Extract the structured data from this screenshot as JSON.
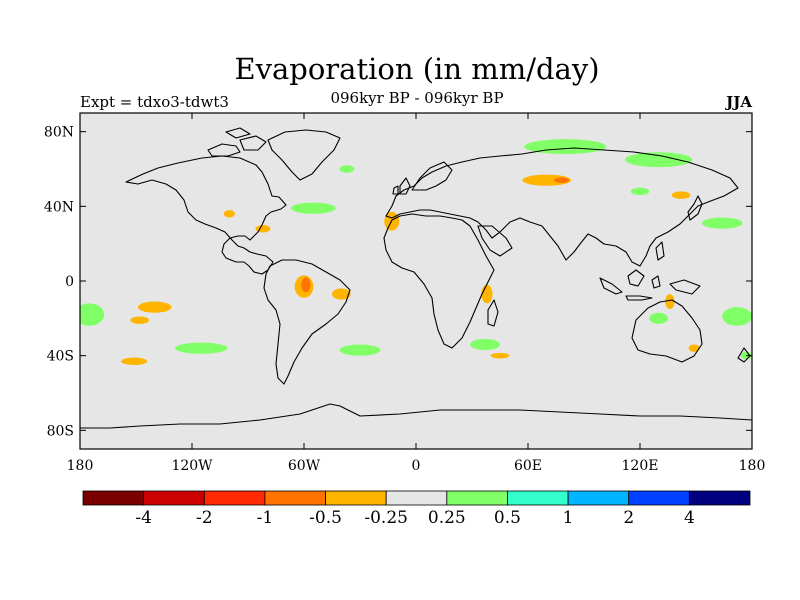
{
  "title": "Evaporation (in mm/day)",
  "subtitle": "096kyr BP - 096kyr BP",
  "left_label": "Expt = tdxo3-tdwt3",
  "right_label": "JJA",
  "map": {
    "lon_range": [
      -180,
      180
    ],
    "lat_range": [
      -90,
      90
    ],
    "background_color": "#e6e6e6",
    "lat_ticks": [
      {
        "value": 80,
        "label": "80N"
      },
      {
        "value": 40,
        "label": "40N"
      },
      {
        "value": 0,
        "label": "0"
      },
      {
        "value": -40,
        "label": "40S"
      },
      {
        "value": -80,
        "label": "80S"
      }
    ],
    "lon_ticks": [
      {
        "value": -180,
        "label": "180"
      },
      {
        "value": -120,
        "label": "120W"
      },
      {
        "value": -60,
        "label": "60W"
      },
      {
        "value": 0,
        "label": "0"
      },
      {
        "value": 60,
        "label": "60E"
      },
      {
        "value": 120,
        "label": "120E"
      },
      {
        "value": 180,
        "label": "180"
      }
    ]
  },
  "colorbar": {
    "colors": [
      "#7a0000",
      "#cc0000",
      "#ff2a00",
      "#ff7300",
      "#ffb400",
      "#e6e6e6",
      "#80ff66",
      "#33ffcc",
      "#00b4ff",
      "#0040ff",
      "#000080"
    ],
    "labels": [
      "-4",
      "-2",
      "-1",
      "-0.5",
      "-0.25",
      "0.25",
      "0.5",
      "1",
      "2",
      "4"
    ]
  },
  "chart_data": {
    "type": "heatmap",
    "title": "Evaporation (in mm/day)",
    "subtitle": "096kyr BP - 096kyr BP",
    "xlim": [
      -180,
      180
    ],
    "ylim": [
      -90,
      90
    ],
    "levels": [
      -4,
      -2,
      -1,
      -0.5,
      -0.25,
      0.25,
      0.5,
      1,
      2,
      4
    ],
    "anomaly_regions": [
      {
        "lon": 130,
        "lat": 65,
        "rx": 18,
        "ry": 4,
        "level": "0.25-0.5"
      },
      {
        "lon": 80,
        "lat": 72,
        "rx": 22,
        "ry": 4,
        "level": "0.25-0.5"
      },
      {
        "lon": 70,
        "lat": 54,
        "rx": 13,
        "ry": 3,
        "level": "-0.5--0.25"
      },
      {
        "lon": 78,
        "lat": 54,
        "rx": 4,
        "ry": 1.5,
        "level": "-1--0.5"
      },
      {
        "lon": 142,
        "lat": 46,
        "rx": 5,
        "ry": 2,
        "level": "-0.5--0.25"
      },
      {
        "lon": 120,
        "lat": 48,
        "rx": 5,
        "ry": 2,
        "level": "0.25-0.5"
      },
      {
        "lon": 164,
        "lat": 31,
        "rx": 11,
        "ry": 3,
        "level": "0.25-0.5"
      },
      {
        "lon": -55,
        "lat": 39,
        "rx": 12,
        "ry": 3,
        "level": "0.25-0.5"
      },
      {
        "lon": -37,
        "lat": 60,
        "rx": 4,
        "ry": 2,
        "level": "0.25-0.5"
      },
      {
        "lon": -100,
        "lat": 36,
        "rx": 3,
        "ry": 2,
        "level": "-0.5--0.25"
      },
      {
        "lon": -82,
        "lat": 28,
        "rx": 4,
        "ry": 2,
        "level": "-0.5--0.25"
      },
      {
        "lon": -13,
        "lat": 32,
        "rx": 4,
        "ry": 5,
        "level": "-0.5--0.25"
      },
      {
        "lon": -60,
        "lat": -3,
        "rx": 5,
        "ry": 6,
        "level": "-0.5--0.25"
      },
      {
        "lon": -59,
        "lat": -2,
        "rx": 2.5,
        "ry": 4,
        "level": "-1--0.5"
      },
      {
        "lon": -40,
        "lat": -7,
        "rx": 5,
        "ry": 3,
        "level": "-0.5--0.25"
      },
      {
        "lon": -140,
        "lat": -14,
        "rx": 9,
        "ry": 3,
        "level": "-0.5--0.25"
      },
      {
        "lon": -148,
        "lat": -21,
        "rx": 5,
        "ry": 2,
        "level": "-0.5--0.25"
      },
      {
        "lon": -175,
        "lat": -18,
        "rx": 8,
        "ry": 6,
        "level": "0.25-0.5"
      },
      {
        "lon": -115,
        "lat": -36,
        "rx": 14,
        "ry": 3,
        "level": "0.25-0.5"
      },
      {
        "lon": -151,
        "lat": -43,
        "rx": 7,
        "ry": 2,
        "level": "-0.5--0.25"
      },
      {
        "lon": -30,
        "lat": -37,
        "rx": 11,
        "ry": 3,
        "level": "0.25-0.5"
      },
      {
        "lon": 37,
        "lat": -34,
        "rx": 8,
        "ry": 3,
        "level": "0.25-0.5"
      },
      {
        "lon": 45,
        "lat": -40,
        "rx": 5,
        "ry": 1.5,
        "level": "-0.5--0.25"
      },
      {
        "lon": 38,
        "lat": -7,
        "rx": 3,
        "ry": 5,
        "level": "-0.5--0.25"
      },
      {
        "lon": 130,
        "lat": -20,
        "rx": 5,
        "ry": 3,
        "level": "0.25-0.5"
      },
      {
        "lon": 136,
        "lat": -11,
        "rx": 2.5,
        "ry": 4,
        "level": "-0.5--0.25"
      },
      {
        "lon": 149,
        "lat": -36,
        "rx": 3,
        "ry": 2,
        "level": "-0.5--0.25"
      },
      {
        "lon": 172,
        "lat": -19,
        "rx": 8,
        "ry": 5,
        "level": "0.25-0.5"
      },
      {
        "lon": 177,
        "lat": -40,
        "rx": 3,
        "ry": 2,
        "level": "0.25-0.5"
      }
    ]
  }
}
